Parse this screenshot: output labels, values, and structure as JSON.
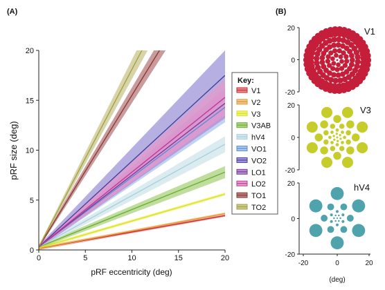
{
  "panels": {
    "a_label": "(A)",
    "b_label": "(B)"
  },
  "chart_data": [
    {
      "type": "line",
      "xlabel": "pRF eccentricity (deg)",
      "ylabel": "pRF size (deg)",
      "xlim": [
        0,
        20
      ],
      "ylim": [
        0,
        20
      ],
      "xticks": [
        0,
        5,
        10,
        15,
        20
      ],
      "yticks": [
        0,
        5,
        10,
        15,
        20
      ],
      "legend": {
        "title": "Key:",
        "placement": "right"
      },
      "series": [
        {
          "name": "V1",
          "color": "#cc2a36",
          "band": "#e28a8a",
          "slope": 0.165,
          "intercept": 0.15,
          "band_width": 0.12
        },
        {
          "name": "V2",
          "color": "#e0962e",
          "band": "#f1c48a",
          "slope": 0.175,
          "intercept": 0.15,
          "band_width": 0.12
        },
        {
          "name": "V3",
          "color": "#d9e21f",
          "band": "#eef07a",
          "slope": 0.27,
          "intercept": 0.2,
          "band_width": 0.15
        },
        {
          "name": "V3AB",
          "color": "#6fae3a",
          "band": "#a9d27c",
          "slope": 0.375,
          "intercept": 0.3,
          "band_width": 0.6
        },
        {
          "name": "hV4",
          "color": "#a8d0dc",
          "band": "#cfe5ec",
          "slope": 0.515,
          "intercept": 0.3,
          "band_width": 0.8
        },
        {
          "name": "VO1",
          "color": "#5b8fd6",
          "band": "#a9c6ef",
          "slope": 0.7,
          "intercept": 0.3,
          "band_width": 1.5
        },
        {
          "name": "VO2",
          "color": "#4a3d9a",
          "band": "#9e96d8",
          "slope": 0.86,
          "intercept": 0.3,
          "band_width": 2.5
        },
        {
          "name": "LO1",
          "color": "#7a3d9a",
          "band": "#b68ad0",
          "slope": 0.72,
          "intercept": 0.3,
          "band_width": 1.5
        },
        {
          "name": "LO2",
          "color": "#c2399b",
          "band": "#e59acb",
          "slope": 0.75,
          "intercept": 0.3,
          "band_width": 1.8
        },
        {
          "name": "TO1",
          "color": "#8b3a3a",
          "band": "#b77a7a",
          "slope": 1.52,
          "intercept": 0.3,
          "band_width": 1.4
        },
        {
          "name": "TO2",
          "color": "#a3a14a",
          "band": "#c9c78a",
          "slope": 1.78,
          "intercept": 0.3,
          "band_width": 1.8
        }
      ]
    },
    {
      "type": "scatter",
      "title": "V1",
      "xlim": [
        -20,
        20
      ],
      "ylim": [
        -20,
        20
      ],
      "yticks": [
        20,
        0,
        -20
      ],
      "color": "#c41e3a"
    },
    {
      "type": "scatter",
      "title": "V3",
      "xlim": [
        -20,
        20
      ],
      "ylim": [
        -20,
        20
      ],
      "yticks": [
        20,
        0,
        -20
      ],
      "color": "#c6cc2a"
    },
    {
      "type": "scatter",
      "title": "hV4",
      "xlim": [
        -20,
        20
      ],
      "ylim": [
        -20,
        20
      ],
      "yticks": [
        20,
        0,
        -20
      ],
      "xticks": [
        -20,
        0,
        20
      ],
      "xlabel": "(deg)",
      "color": "#4fa3ad"
    }
  ]
}
